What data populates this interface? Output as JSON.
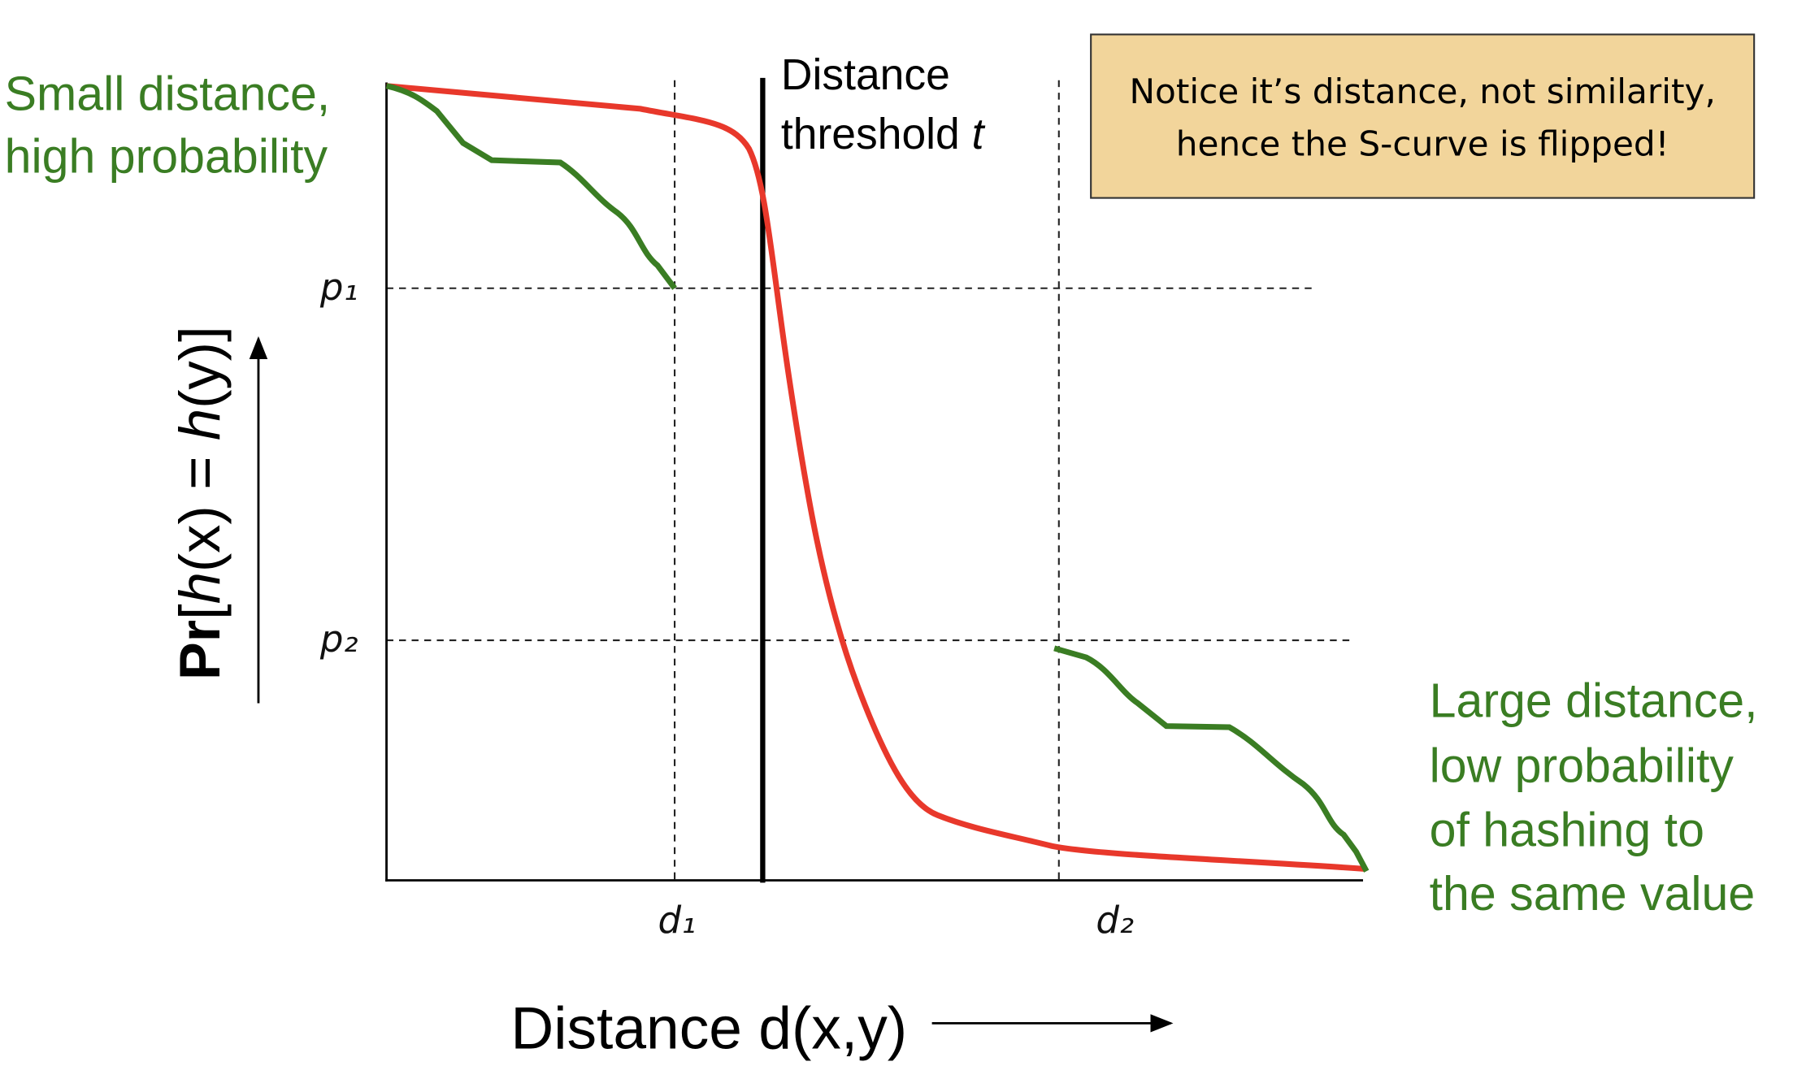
{
  "left_label": [
    "Small distance,",
    "high probability"
  ],
  "threshold_label": {
    "lines": [
      "Distance",
      "threshold"
    ],
    "variable": "t"
  },
  "note": [
    "Notice it’s distance, not similarity,",
    "hence the S-curve is flipped!"
  ],
  "y_levels": [
    "p₁",
    "p₂"
  ],
  "x_levels": [
    "d₁",
    "d₂"
  ],
  "y_axis_label": [
    "Pr",
    "[",
    "h",
    "(x) = ",
    "h",
    "(y)]"
  ],
  "x_axis_label": "Distance d(x,y)",
  "right_label": [
    "Large distance,",
    "low probability",
    "of hashing to",
    "the same value"
  ]
}
